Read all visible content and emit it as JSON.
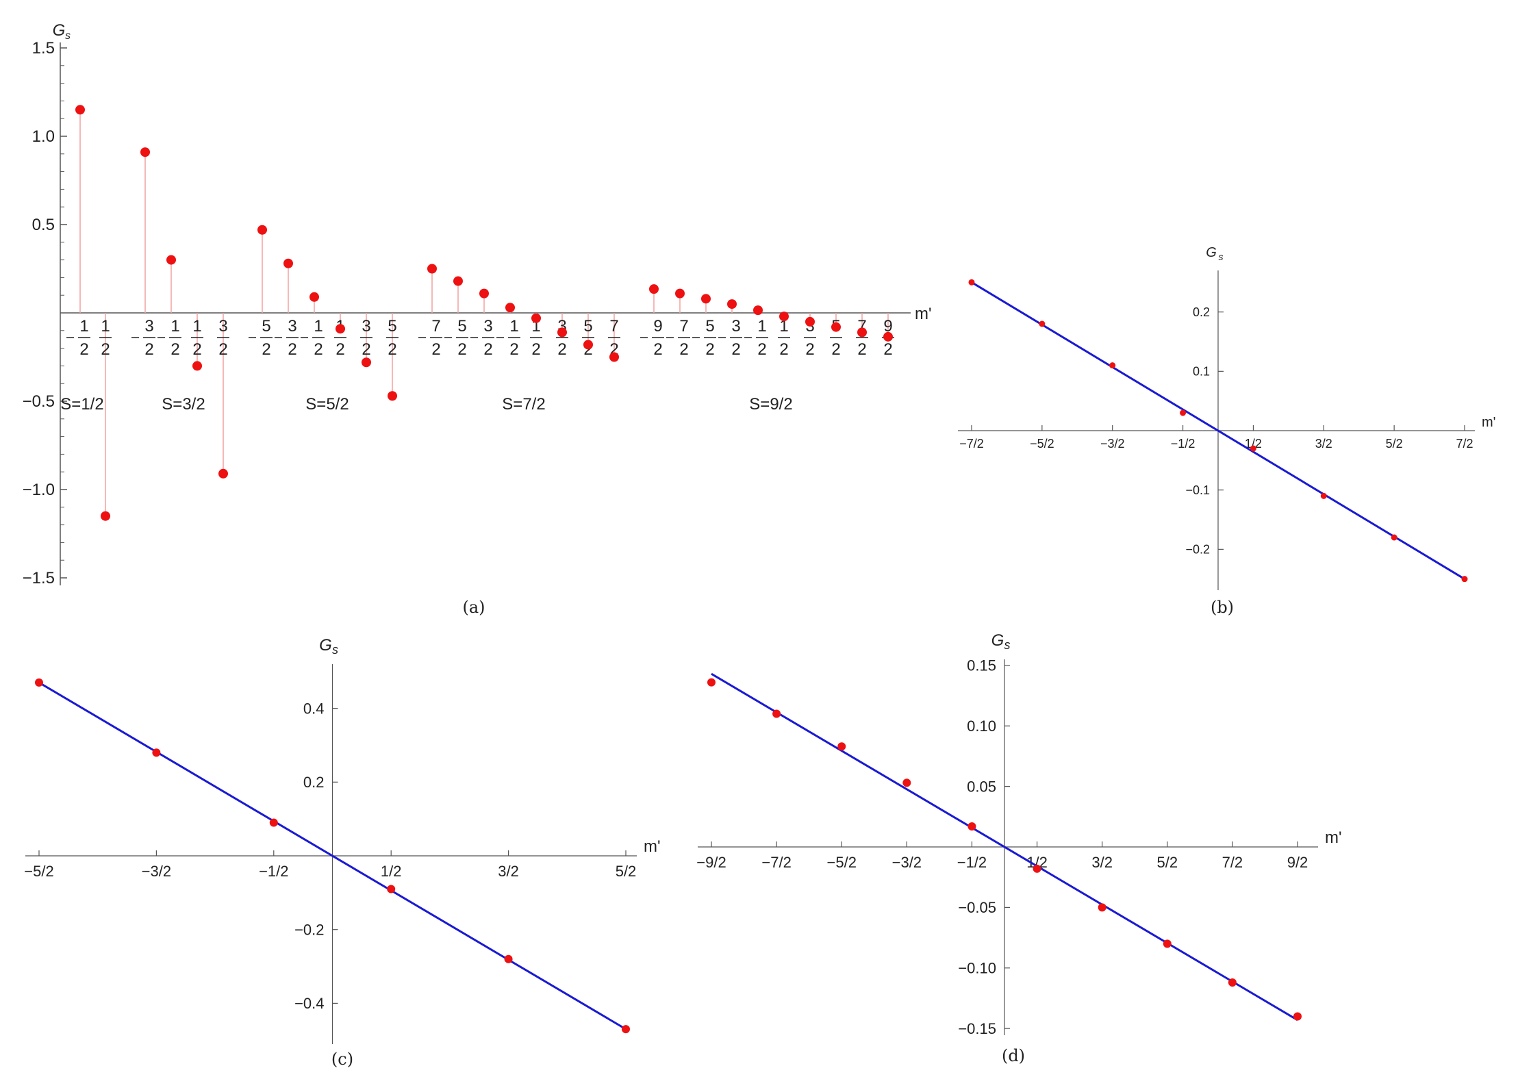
{
  "colors": {
    "points": "#ee1111",
    "stems": "#f2a0a0",
    "fit_line": "#1a1ad4",
    "axes": "#555555"
  },
  "chart_data": [
    {
      "panel": "(a)",
      "type": "scatter",
      "ylabel": "G_s",
      "ylabel_main": "G",
      "ylabel_sub": "s",
      "xlabel": "m'",
      "ylim": [
        -1.5,
        1.5
      ],
      "yticks": [
        "1.5",
        "1.0",
        "0.5",
        "-0.5",
        "-1.0",
        "-1.5"
      ],
      "ytick_values": [
        1.5,
        1.0,
        0.5,
        -0.5,
        -1.0,
        -1.5
      ],
      "stems": true,
      "groups": [
        {
          "label": "S=1/2",
          "m": [
            "-1/2",
            "1/2"
          ],
          "values": [
            1.15,
            -1.15
          ]
        },
        {
          "label": "S=3/2",
          "m": [
            "-3/2",
            "-1/2",
            "1/2",
            "3/2"
          ],
          "values": [
            0.91,
            0.3,
            -0.3,
            -0.91
          ]
        },
        {
          "label": "S=5/2",
          "m": [
            "-5/2",
            "-3/2",
            "-1/2",
            "1/2",
            "3/2",
            "5/2"
          ],
          "values": [
            0.47,
            0.28,
            0.09,
            -0.09,
            -0.28,
            -0.47
          ]
        },
        {
          "label": "S=7/2",
          "m": [
            "-7/2",
            "-5/2",
            "-3/2",
            "-1/2",
            "1/2",
            "3/2",
            "5/2",
            "7/2"
          ],
          "values": [
            0.25,
            0.18,
            0.11,
            0.03,
            -0.03,
            -0.11,
            -0.18,
            -0.25
          ]
        },
        {
          "label": "S=9/2",
          "m": [
            "-9/2",
            "-7/2",
            "-5/2",
            "-3/2",
            "-1/2",
            "1/2",
            "3/2",
            "5/2",
            "7/2",
            "9/2"
          ],
          "values": [
            0.135,
            0.11,
            0.08,
            0.05,
            0.015,
            -0.02,
            -0.05,
            -0.08,
            -0.11,
            -0.135
          ]
        }
      ]
    },
    {
      "panel": "(b)",
      "type": "scatter",
      "ylabel": "G_s",
      "ylabel_main": "G",
      "ylabel_sub": "s",
      "xlabel": "m'",
      "xlim": [
        -3.5,
        3.5
      ],
      "ylim": [
        -0.27,
        0.27
      ],
      "xticks": [
        "-7/2",
        "-5/2",
        "-3/2",
        "-1/2",
        "1/2",
        "3/2",
        "5/2",
        "7/2"
      ],
      "xtick_values": [
        -3.5,
        -2.5,
        -1.5,
        -0.5,
        0.5,
        1.5,
        2.5,
        3.5
      ],
      "yticks": [
        "0.2",
        "0.1",
        "-0.1",
        "-0.2"
      ],
      "ytick_values": [
        0.2,
        0.1,
        -0.1,
        -0.2
      ],
      "points": {
        "x": [
          -3.5,
          -2.5,
          -1.5,
          -0.5,
          0.5,
          1.5,
          2.5,
          3.5
        ],
        "y": [
          0.25,
          0.18,
          0.11,
          0.03,
          -0.03,
          -0.11,
          -0.18,
          -0.25
        ]
      },
      "fit_line": {
        "x": [
          -3.5,
          3.5
        ],
        "y": [
          0.25,
          -0.25
        ]
      }
    },
    {
      "panel": "(c)",
      "type": "scatter",
      "ylabel": "G_s",
      "ylabel_main": "G",
      "ylabel_sub": "s",
      "xlabel": "m'",
      "xlim": [
        -2.5,
        2.5
      ],
      "ylim": [
        -0.52,
        0.52
      ],
      "xticks": [
        "-5/2",
        "-3/2",
        "-1/2",
        "1/2",
        "3/2",
        "5/2"
      ],
      "xtick_values": [
        -2.5,
        -1.5,
        -0.5,
        0.5,
        1.5,
        2.5
      ],
      "yticks": [
        "0.4",
        "0.2",
        "-0.2",
        "-0.4"
      ],
      "ytick_values": [
        0.4,
        0.2,
        -0.2,
        -0.4
      ],
      "points": {
        "x": [
          -2.5,
          -1.5,
          -0.5,
          0.5,
          1.5,
          2.5
        ],
        "y": [
          0.47,
          0.28,
          0.09,
          -0.09,
          -0.28,
          -0.47
        ]
      },
      "fit_line": {
        "x": [
          -2.5,
          2.5
        ],
        "y": [
          0.47,
          -0.47
        ]
      }
    },
    {
      "panel": "(d)",
      "type": "scatter",
      "ylabel": "G_s",
      "ylabel_main": "G",
      "ylabel_sub": "s",
      "xlabel": "m'",
      "xlim": [
        -4.5,
        4.5
      ],
      "ylim": [
        -0.155,
        0.155
      ],
      "xticks": [
        "-9/2",
        "-7/2",
        "-5/2",
        "-3/2",
        "-1/2",
        "1/2",
        "3/2",
        "5/2",
        "7/2",
        "9/2"
      ],
      "xtick_values": [
        -4.5,
        -3.5,
        -2.5,
        -1.5,
        -0.5,
        0.5,
        1.5,
        2.5,
        3.5,
        4.5
      ],
      "yticks": [
        "0.15",
        "0.10",
        "0.05",
        "-0.05",
        "-0.10",
        "-0.15"
      ],
      "ytick_values": [
        0.15,
        0.1,
        0.05,
        -0.05,
        -0.1,
        -0.15
      ],
      "points": {
        "x": [
          -4.5,
          -3.5,
          -2.5,
          -1.5,
          -0.5,
          0.5,
          1.5,
          2.5,
          3.5,
          4.5
        ],
        "y": [
          0.136,
          0.11,
          0.083,
          0.053,
          0.017,
          -0.018,
          -0.05,
          -0.08,
          -0.112,
          -0.14
        ]
      },
      "fit_line": {
        "x": [
          -4.5,
          4.5
        ],
        "y": [
          0.143,
          -0.143
        ]
      }
    }
  ]
}
